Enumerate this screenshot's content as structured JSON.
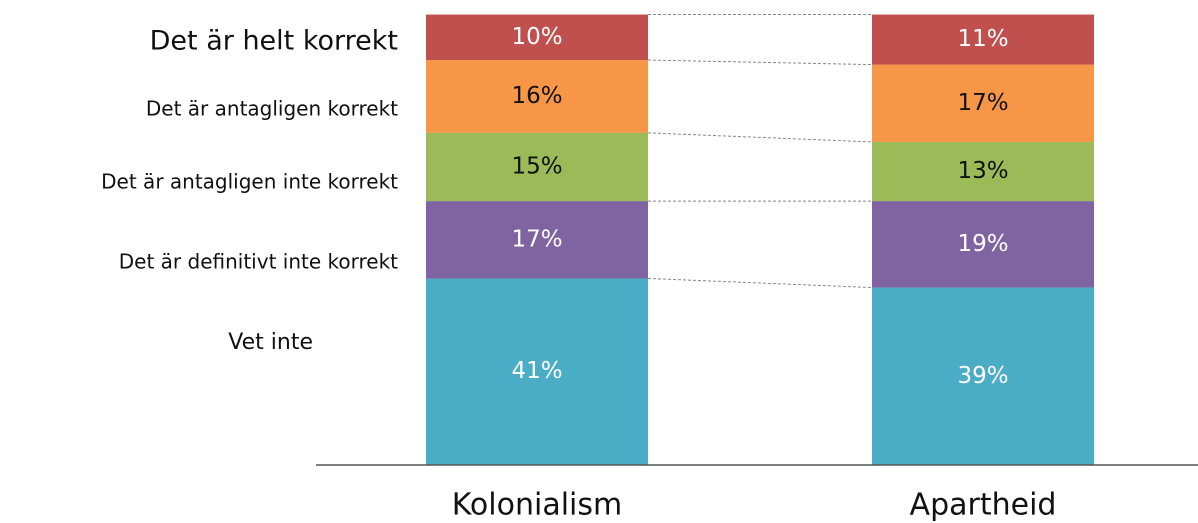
{
  "chart_data": {
    "type": "stacked_bar",
    "categories": [
      "Kolonialism",
      "Apartheid"
    ],
    "series": [
      {
        "name": "Det är helt korrekt",
        "color": "#c0504d",
        "values": [
          10,
          11
        ],
        "value_labels": [
          "10%",
          "11%"
        ]
      },
      {
        "name": "Det är antagligen korrekt",
        "color": "#f79646",
        "values": [
          16,
          17
        ],
        "value_labels": [
          "16%",
          "17%"
        ]
      },
      {
        "name": "Det är antagligen inte korrekt",
        "color": "#9bbb59",
        "values": [
          15,
          13
        ],
        "value_labels": [
          "15%",
          "13%"
        ]
      },
      {
        "name": "Det är definitivt inte korrekt",
        "color": "#8064a2",
        "values": [
          17,
          19
        ],
        "value_labels": [
          "17%",
          "19%"
        ]
      },
      {
        "name": "Vet inte",
        "color": "#4bacc6",
        "values": [
          41,
          39
        ],
        "value_labels": [
          "41%",
          "39%"
        ]
      }
    ],
    "ylim": [
      0,
      100
    ]
  }
}
